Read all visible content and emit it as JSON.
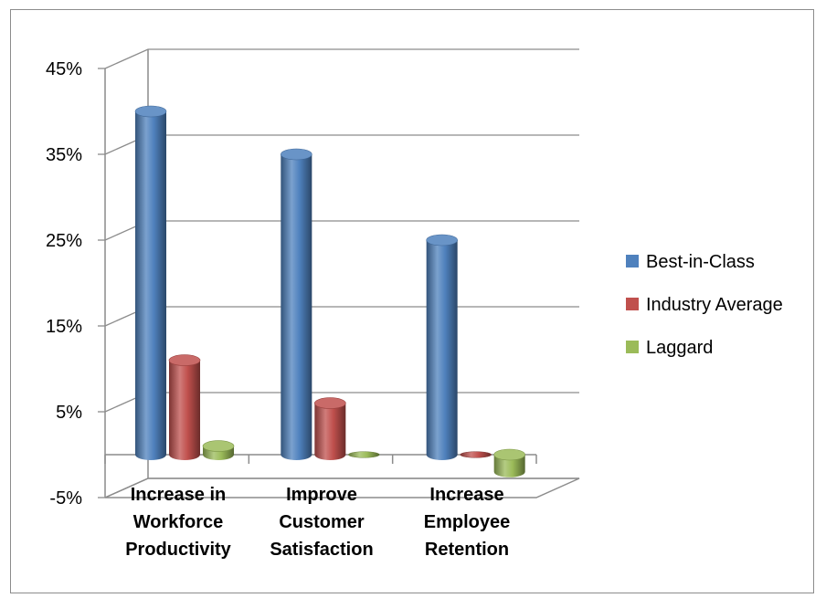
{
  "chart_data": {
    "type": "bar",
    "title": "",
    "xlabel": "",
    "ylabel": "",
    "categories": [
      [
        "Increase in",
        "Workforce",
        "Productivity"
      ],
      [
        "Improve",
        "Customer",
        "Satisfaction"
      ],
      [
        "Increase",
        "Employee",
        "Retention"
      ]
    ],
    "series": [
      {
        "name": "Best-in-Class",
        "color": "#4f81bd",
        "values": [
          40,
          35,
          25
        ]
      },
      {
        "name": "Industry Average",
        "color": "#c0504d",
        "values": [
          11,
          6,
          0
        ]
      },
      {
        "name": "Laggard",
        "color": "#9bbb59",
        "values": [
          1,
          0,
          -2
        ]
      }
    ],
    "ylim": [
      -5,
      45
    ],
    "yticks": [
      45,
      35,
      25,
      15,
      5,
      -5
    ],
    "ytick_labels": [
      "45%",
      "35%",
      "25%",
      "15%",
      "5%",
      "-5%"
    ],
    "grid": true,
    "legend": "right",
    "style": "3d-cylinder"
  }
}
